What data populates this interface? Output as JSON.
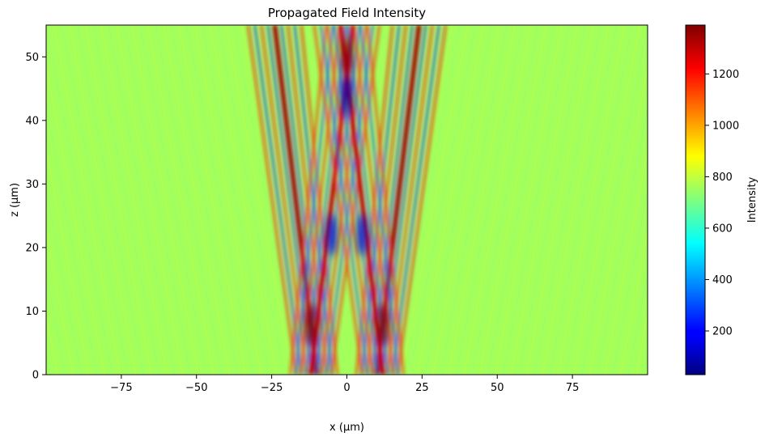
{
  "chart_data": {
    "type": "heatmap",
    "title": "Propagated Field Intensity",
    "xlabel": "x (μm)",
    "ylabel": "z (μm)",
    "xlim": [
      -100,
      100
    ],
    "ylim": [
      0,
      55
    ],
    "x_ticks": [
      -75,
      -50,
      -25,
      0,
      25,
      50,
      75
    ],
    "x_tick_labels": [
      "−75",
      "−50",
      "−25",
      "0",
      "25",
      "50",
      "75"
    ],
    "y_ticks": [
      0,
      10,
      20,
      30,
      40,
      50
    ],
    "y_tick_labels": [
      "0",
      "10",
      "20",
      "30",
      "40",
      "50"
    ],
    "colormap": "jet",
    "background_value": 760,
    "colorbar": {
      "label": "Intensity",
      "range": [
        30,
        1390
      ],
      "ticks": [
        200,
        400,
        600,
        800,
        1000,
        1200
      ],
      "tick_labels": [
        "200",
        "400",
        "600",
        "800",
        "1000",
        "1200"
      ]
    },
    "features": [
      {
        "kind": "beam",
        "x0": -10,
        "z0": 0,
        "x1": -24,
        "z1": 55,
        "peak": 1350,
        "dip": 250
      },
      {
        "kind": "beam",
        "x0": -12,
        "z0": 0,
        "x1": 2,
        "z1": 55,
        "peak": 1300,
        "dip": 300
      },
      {
        "kind": "beam",
        "x0": 10,
        "z0": 0,
        "x1": 24,
        "z1": 55,
        "peak": 1350,
        "dip": 250
      },
      {
        "kind": "beam",
        "x0": 12,
        "z0": 0,
        "x1": -2,
        "z1": 55,
        "peak": 1300,
        "dip": 300
      },
      {
        "kind": "hot_spot",
        "x": -12,
        "z": 8,
        "value": 1390
      },
      {
        "kind": "hot_spot",
        "x": 12,
        "z": 8,
        "value": 1390
      },
      {
        "kind": "hot_spot",
        "x": 0,
        "z": 50,
        "value": 1380
      },
      {
        "kind": "cold_spot",
        "x": 0,
        "z": 44,
        "value": 100
      },
      {
        "kind": "cold_spot",
        "x": -5,
        "z": 22,
        "value": 150
      },
      {
        "kind": "cold_spot",
        "x": 5,
        "z": 22,
        "value": 150
      }
    ]
  }
}
